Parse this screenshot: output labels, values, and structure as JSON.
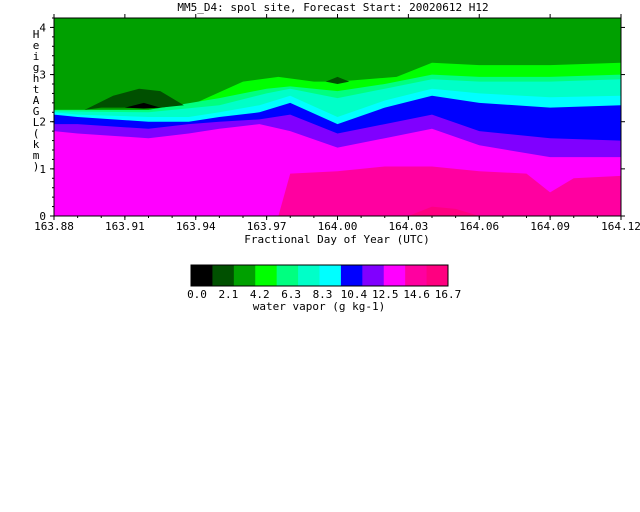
{
  "chart_data": {
    "type": "heatmap",
    "title": "MM5_D4: spol site,  Forecast Start: 20020612 H12",
    "xlabel": "Fractional Day of Year (UTC)",
    "ylabel": "Height AGL (km)",
    "xlim": [
      163.88,
      164.12
    ],
    "ylim": [
      0,
      4.2
    ],
    "x_ticks": [
      "163.88",
      "163.91",
      "163.94",
      "163.97",
      "164.00",
      "164.03",
      "164.06",
      "164.09",
      "164.12"
    ],
    "y_ticks": [
      "0",
      "1",
      "2",
      "3",
      "4"
    ],
    "colorbar": {
      "label": "water vapor (g kg-1)",
      "tick_labels": [
        "0.0",
        "2.1",
        "4.2",
        "6.3",
        "8.3",
        "10.4",
        "12.5",
        "14.6",
        "16.7"
      ],
      "colors": [
        "#000000",
        "#005000",
        "#00a000",
        "#00ff00",
        "#00ff80",
        "#00ffc8",
        "#00ffff",
        "#0000ff",
        "#8000ff",
        "#ff00ff",
        "#ff00a0",
        "#ff0080"
      ]
    },
    "contour_bands": [
      {
        "level": "10.4",
        "color": "#00ffff",
        "x": [
          163.88,
          163.89,
          163.92,
          163.937,
          163.95,
          163.967,
          163.98,
          164.0,
          164.02,
          164.04,
          164.06,
          164.09,
          164.12
        ],
        "y": [
          2.2,
          2.15,
          2.1,
          2.1,
          2.2,
          2.35,
          2.55,
          2.1,
          2.45,
          2.7,
          2.6,
          2.52,
          2.55
        ]
      },
      {
        "level": "8.3",
        "color": "#00ffc8",
        "x": [
          163.88,
          163.92,
          163.95,
          163.97,
          163.98,
          164.0,
          164.02,
          164.04,
          164.06,
          164.09,
          164.12
        ],
        "y": [
          2.22,
          2.2,
          2.35,
          2.6,
          2.7,
          2.5,
          2.7,
          2.9,
          2.85,
          2.85,
          2.9
        ]
      },
      {
        "level": "6.3",
        "color": "#00ff80",
        "x": [
          163.88,
          163.92,
          163.95,
          163.97,
          163.98,
          164.0,
          164.02,
          164.04,
          164.06,
          164.09,
          164.12
        ],
        "y": [
          2.25,
          2.25,
          2.5,
          2.7,
          2.75,
          2.65,
          2.8,
          3.0,
          2.95,
          2.95,
          3.0
        ]
      },
      {
        "level": "4.2",
        "color": "#00ff00",
        "x": [
          163.88,
          163.92,
          163.94,
          163.96,
          163.975,
          163.99,
          164.0,
          164.025,
          164.04,
          164.06,
          164.09,
          164.12
        ],
        "y": [
          2.25,
          2.25,
          2.4,
          2.85,
          2.95,
          2.85,
          2.85,
          2.95,
          3.25,
          3.2,
          3.2,
          3.25
        ]
      }
    ],
    "core_bands": [
      {
        "level": "12.5",
        "color": "#0000ff",
        "x": [
          163.88,
          163.89,
          163.92,
          163.937,
          163.95,
          163.967,
          163.98,
          164.0,
          164.02,
          164.04,
          164.06,
          164.09,
          164.12
        ],
        "y": [
          2.15,
          2.1,
          2.0,
          2.0,
          2.1,
          2.2,
          2.4,
          1.95,
          2.3,
          2.55,
          2.4,
          2.3,
          2.35
        ]
      },
      {
        "level": "14.6",
        "color": "#8000ff",
        "x": [
          163.88,
          163.89,
          163.92,
          163.937,
          163.95,
          163.967,
          163.98,
          164.0,
          164.02,
          164.04,
          164.06,
          164.09,
          164.12
        ],
        "y": [
          1.95,
          1.95,
          1.85,
          1.95,
          2.0,
          2.05,
          2.15,
          1.75,
          1.95,
          2.15,
          1.8,
          1.65,
          1.6
        ]
      },
      {
        "level": "16.7",
        "color": "#ff00ff",
        "x": [
          163.88,
          163.89,
          163.92,
          163.937,
          163.95,
          163.967,
          163.98,
          164.0,
          164.02,
          164.04,
          164.06,
          164.09,
          164.12
        ],
        "y": [
          1.8,
          1.75,
          1.65,
          1.75,
          1.85,
          1.95,
          1.8,
          1.45,
          1.65,
          1.85,
          1.5,
          1.25,
          1.25
        ]
      }
    ],
    "dark_patches": [
      {
        "color": "#005000",
        "x": [
          163.893,
          163.905,
          163.916,
          163.925,
          163.935,
          163.925,
          163.91,
          163.9
        ],
        "y": [
          2.25,
          2.55,
          2.7,
          2.65,
          2.35,
          2.3,
          2.3,
          2.3
        ]
      },
      {
        "color": "#000000",
        "x": [
          163.91,
          163.918,
          163.925,
          163.918
        ],
        "y": [
          2.3,
          2.4,
          2.3,
          2.28
        ]
      },
      {
        "color": "#005000",
        "x": [
          163.995,
          164.0,
          164.005,
          164.0
        ],
        "y": [
          2.85,
          2.95,
          2.85,
          2.8
        ]
      }
    ],
    "hot_patch": {
      "color": "#ff00a0",
      "x": [
        163.975,
        163.98,
        164.0,
        164.02,
        164.04,
        164.06,
        164.08,
        164.09,
        164.1,
        164.12,
        164.12
      ],
      "y": [
        0.0,
        0.9,
        0.95,
        1.05,
        1.05,
        0.95,
        0.9,
        0.5,
        0.8,
        0.85,
        0.0
      ]
    },
    "pink_strip": {
      "color": "#ff0080",
      "x": [
        164.03,
        164.04,
        164.05,
        164.06
      ],
      "y": [
        0.0,
        0.2,
        0.15,
        0.0
      ]
    },
    "background_top": "#00a000",
    "background_bottom": "#ff00a0"
  }
}
